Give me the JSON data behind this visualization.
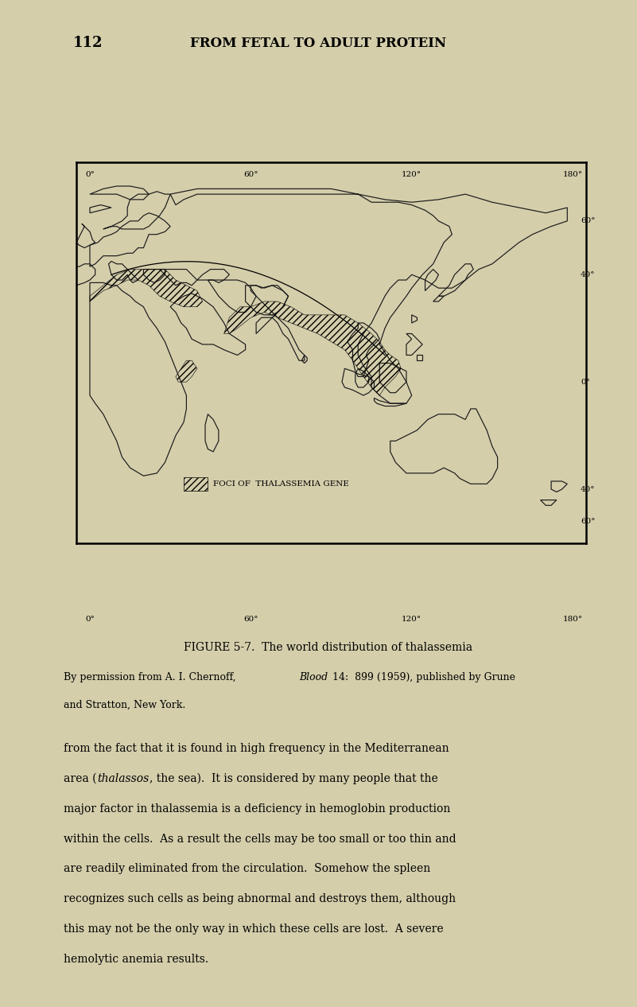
{
  "bg_color": "#d4ceab",
  "line_color": "#1a1a1a",
  "header_number": "112",
  "header_title": "FROM FETAL TO ADULT PROTEIN",
  "figure_caption_title": "FIGURE 5-7.  The world distribution of thalassemia",
  "figure_caption_sub2": "and Stratton, New York.",
  "body_text_lines": [
    "from the fact that it is found in high frequency in the Mediterranean",
    "area (thalassos, the sea).  It is considered by many people that the",
    "major factor in thalassemia is a deficiency in hemoglobin production",
    "within the cells.  As a result the cells may be too small or too thin and",
    "are readily eliminated from the circulation.  Somehow the spleen",
    "recognizes such cells as being abnormal and destroys them, although",
    "this may not be the only way in which these cells are lost.  A severe",
    "hemolytic anemia results."
  ],
  "legend_hatch_text": "FOCI OF  THALASSEMIA GENE",
  "top_lon_labels": [
    [
      "0°",
      0
    ],
    [
      "60°",
      60
    ],
    [
      "120°",
      120
    ],
    [
      "180°",
      180
    ]
  ],
  "bottom_lon_labels": [
    [
      "0°",
      0
    ],
    [
      "60°",
      60
    ],
    [
      "120°",
      120
    ],
    [
      "180°",
      180
    ]
  ],
  "right_lat_labels": [
    [
      "60°",
      60
    ],
    [
      "40°",
      40
    ],
    [
      "0°",
      0
    ],
    [
      "40°",
      -40
    ]
  ],
  "map_xlim": [
    -5,
    185
  ],
  "map_ylim": [
    -60,
    82
  ]
}
